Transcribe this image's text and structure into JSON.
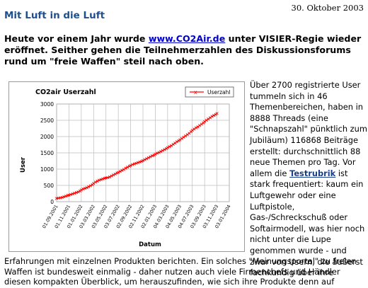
{
  "date": "30. Oktober 2003",
  "title": "Mit Luft in die Luft",
  "lead": {
    "before": "Heute vor einem Jahr wurde ",
    "link": "www.CO2Air.de",
    "after": " unter VISIER-Regie wieder eröffnet. Seither gehen die Teilnehmerzahlen des Diskussionsforums rund um \"freie Waffen\" steil nach oben."
  },
  "side": {
    "before": "Über 2700 registrierte User tummeln sich in 46 Themenbereichen, haben in 8888 Threads (eine \"Schnapszahl\" pünktlich zum Jubiläum) 116868 Beiträge erstellt: durchschnittlich 88 neue Themen pro Tag. Vor allem die ",
    "link": "Testrubrik",
    "after": " ist stark frequentiert: kaum ein Luftgewehr oder eine Luftpistole, Gas-/Schreckschuß oder Softairmodell, was hier noch nicht unter die Lupe genommen wurde - und zwar von Usern, die äußerst fachkundig über ihre"
  },
  "bottom": "Erfahrungen mit einzelnen Produkten berichten. Ein solches \"Meinungsportal\" zu freien Waffen ist bundesweit einmalig - daher nutzen auch viele Firmenchefs und Händler diesen kompakten Überblick, um herauszufinden, wie sich ihre Produkte denn auf",
  "chart_data": {
    "type": "line",
    "title": "CO2air Userzahl",
    "xlabel": "Datum",
    "ylabel": "User",
    "ylim": [
      0,
      3000
    ],
    "yticks": [
      "0",
      "500",
      "1000",
      "1500",
      "2000",
      "2500",
      "3000"
    ],
    "xticks": [
      "01.09.2001",
      "01.11.2001",
      "01.01.2002",
      "03.03.2002",
      "03.05.2002",
      "03.07.2002",
      "02.09.2002",
      "02.11.2002",
      "02.01.2003",
      "04.03.2003",
      "04.05.2003",
      "04.07.2003",
      "03.09.2003",
      "03.11.2003",
      "03.01.2004"
    ],
    "grid": true,
    "legend_position": "top-right",
    "line_color": "#ff0000",
    "series": [
      {
        "name": "Userzahl",
        "x": [
          0,
          0.15,
          0.3,
          0.45,
          0.6,
          0.75,
          0.9,
          1.0,
          1.15,
          1.3,
          1.45,
          1.6,
          1.75,
          1.9,
          2.0,
          2.15,
          2.3,
          2.45,
          2.6,
          2.75,
          2.9,
          3.0,
          3.15,
          3.3,
          3.45,
          3.6,
          3.75,
          3.9,
          4.0,
          4.15,
          4.3,
          4.45,
          4.6,
          4.75,
          4.9,
          5.0,
          5.15,
          5.3,
          5.45,
          5.6,
          5.75,
          5.9,
          6.0,
          6.15,
          6.3,
          6.45,
          6.6,
          6.75,
          6.9,
          7.0,
          7.15,
          7.3,
          7.45,
          7.6,
          7.75,
          7.9,
          8.0,
          8.15,
          8.3,
          8.45,
          8.6,
          8.75,
          8.9,
          9.0,
          9.15,
          9.3,
          9.45,
          9.6,
          9.75,
          9.9,
          10.0,
          10.15,
          10.3,
          10.45,
          10.6,
          10.75,
          10.9,
          11.0,
          11.15,
          11.3,
          11.45,
          11.6,
          11.75,
          11.9,
          12.0,
          12.15,
          12.3,
          12.45,
          12.6,
          12.75,
          12.9,
          13.0
        ],
        "values": [
          100,
          110,
          120,
          130,
          150,
          170,
          190,
          200,
          220,
          240,
          260,
          280,
          300,
          330,
          360,
          390,
          410,
          430,
          460,
          490,
          520,
          560,
          600,
          630,
          660,
          680,
          700,
          720,
          730,
          740,
          760,
          790,
          820,
          850,
          880,
          900,
          930,
          960,
          990,
          1030,
          1060,
          1090,
          1110,
          1140,
          1160,
          1180,
          1200,
          1220,
          1240,
          1260,
          1290,
          1320,
          1350,
          1380,
          1410,
          1430,
          1460,
          1490,
          1510,
          1540,
          1570,
          1600,
          1630,
          1660,
          1690,
          1720,
          1760,
          1800,
          1840,
          1870,
          1900,
          1940,
          1980,
          2020,
          2060,
          2100,
          2150,
          2190,
          2230,
          2270,
          2300,
          2340,
          2380,
          2420,
          2460,
          2500,
          2540,
          2580,
          2620,
          2650,
          2680,
          2710
        ]
      }
    ]
  }
}
